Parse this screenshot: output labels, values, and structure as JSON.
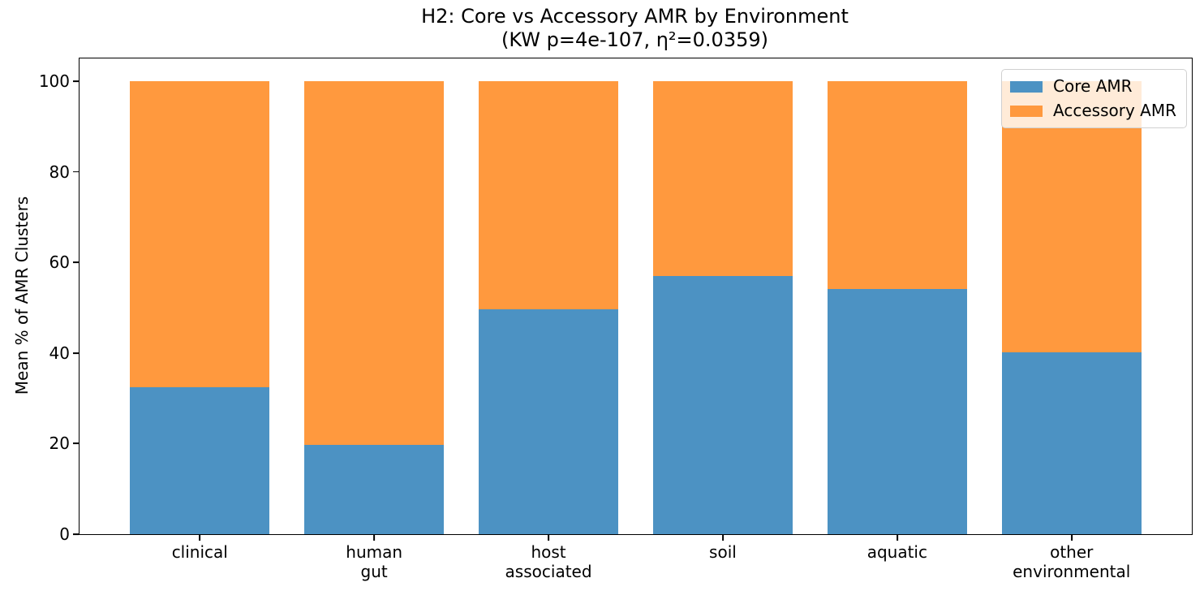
{
  "title": {
    "line1": "H2: Core vs Accessory AMR by Environment",
    "line2": "(KW p=4e-107, η²=0.0359)"
  },
  "ylabel": "Mean % of AMR Clusters",
  "legend": {
    "entries": [
      {
        "label": "Core AMR",
        "color": "#4c92c3"
      },
      {
        "label": "Accessory AMR",
        "color": "#ff993e"
      }
    ]
  },
  "chart_data": {
    "type": "bar",
    "stacked": true,
    "title": "H2: Core vs Accessory AMR by Environment\n(KW p=4e-107, η²=0.0359)",
    "ylabel": "Mean % of AMR Clusters",
    "categories": [
      "clinical",
      "human gut",
      "host associated",
      "soil",
      "aquatic",
      "other environmental"
    ],
    "category_lines": [
      [
        "clinical"
      ],
      [
        "human",
        "gut"
      ],
      [
        "host",
        "associated"
      ],
      [
        "soil"
      ],
      [
        "aquatic"
      ],
      [
        "other",
        "environmental"
      ]
    ],
    "series": [
      {
        "name": "Core AMR",
        "color": "#4c92c3",
        "values": [
          32.5,
          19.7,
          49.7,
          56.9,
          54.2,
          40.2
        ]
      },
      {
        "name": "Accessory AMR",
        "color": "#ff993e",
        "values": [
          67.5,
          80.3,
          50.3,
          43.1,
          45.8,
          59.8
        ]
      }
    ],
    "stack_total": 100,
    "ylim": [
      0,
      105
    ],
    "yticks": [
      0,
      20,
      40,
      60,
      80,
      100
    ],
    "grid": false,
    "legend_position": "upper right"
  }
}
